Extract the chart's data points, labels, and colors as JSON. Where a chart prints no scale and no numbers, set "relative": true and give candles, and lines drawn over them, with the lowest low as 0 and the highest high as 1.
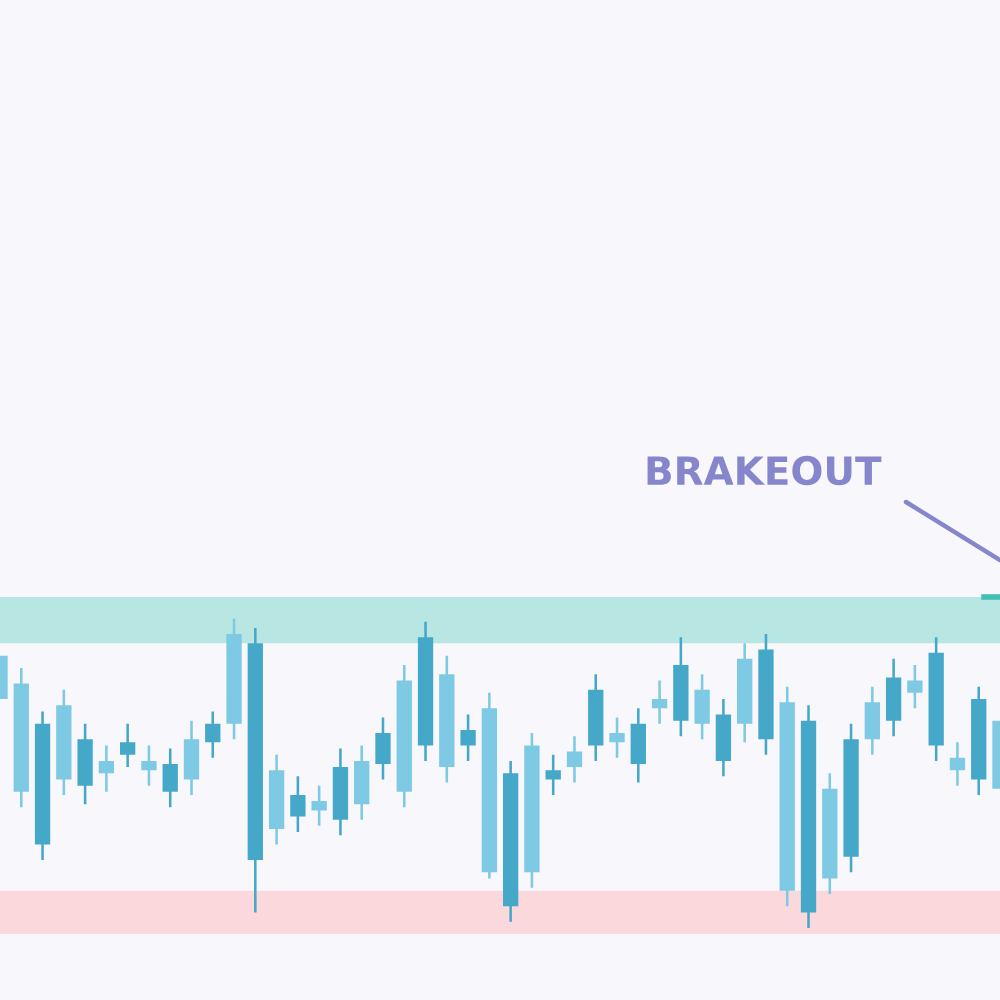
{
  "chart_data": {
    "type": "candlestick",
    "relative": true,
    "categories": [
      null,
      null,
      null,
      null,
      null,
      null,
      null,
      null,
      null,
      null,
      null,
      null,
      null,
      null,
      null,
      null,
      null,
      null,
      null,
      null,
      null,
      null,
      null,
      null,
      null,
      null,
      null,
      null,
      null,
      null,
      null,
      null,
      null,
      null,
      null,
      null,
      null,
      null,
      null,
      null,
      null,
      null,
      null,
      null,
      null,
      null,
      null,
      null
    ],
    "ohlc": [
      [
        0.74,
        0.88,
        0.74,
        0.88
      ],
      [
        0.44,
        0.84,
        0.39,
        0.79
      ],
      [
        0.66,
        0.7,
        0.22,
        0.27
      ],
      [
        0.48,
        0.77,
        0.43,
        0.72
      ],
      [
        0.61,
        0.66,
        0.4,
        0.46
      ],
      [
        0.5,
        0.59,
        0.44,
        0.54
      ],
      [
        0.6,
        0.66,
        0.52,
        0.56
      ],
      [
        0.51,
        0.59,
        0.46,
        0.54
      ],
      [
        0.53,
        0.58,
        0.39,
        0.44
      ],
      [
        0.48,
        0.67,
        0.43,
        0.61
      ],
      [
        0.66,
        0.7,
        0.55,
        0.6
      ],
      [
        0.66,
        1.0,
        0.61,
        0.95
      ],
      [
        0.92,
        0.97,
        0.05,
        0.22
      ],
      [
        0.32,
        0.56,
        0.27,
        0.51
      ],
      [
        0.43,
        0.49,
        0.31,
        0.36
      ],
      [
        0.38,
        0.46,
        0.33,
        0.41
      ],
      [
        0.52,
        0.58,
        0.3,
        0.35
      ],
      [
        0.4,
        0.59,
        0.35,
        0.54
      ],
      [
        0.63,
        0.68,
        0.48,
        0.53
      ],
      [
        0.44,
        0.85,
        0.39,
        0.8
      ],
      [
        0.94,
        0.99,
        0.54,
        0.59
      ],
      [
        0.52,
        0.88,
        0.47,
        0.82
      ],
      [
        0.64,
        0.69,
        0.54,
        0.59
      ],
      [
        0.18,
        0.76,
        0.16,
        0.71
      ],
      [
        0.5,
        0.54,
        0.02,
        0.07
      ],
      [
        0.18,
        0.63,
        0.13,
        0.59
      ],
      [
        0.51,
        0.56,
        0.43,
        0.48
      ],
      [
        0.52,
        0.62,
        0.47,
        0.57
      ],
      [
        0.77,
        0.82,
        0.54,
        0.59
      ],
      [
        0.6,
        0.68,
        0.55,
        0.63
      ],
      [
        0.66,
        0.71,
        0.47,
        0.53
      ],
      [
        0.71,
        0.8,
        0.66,
        0.74
      ],
      [
        0.85,
        0.94,
        0.62,
        0.67
      ],
      [
        0.66,
        0.82,
        0.61,
        0.77
      ],
      [
        0.69,
        0.74,
        0.49,
        0.54
      ],
      [
        0.66,
        0.92,
        0.6,
        0.87
      ],
      [
        0.9,
        0.95,
        0.56,
        0.61
      ],
      [
        0.12,
        0.78,
        0.07,
        0.73
      ],
      [
        0.67,
        0.72,
        0.0,
        0.05
      ],
      [
        0.16,
        0.5,
        0.11,
        0.45
      ],
      [
        0.61,
        0.66,
        0.18,
        0.23
      ],
      [
        0.61,
        0.78,
        0.56,
        0.73
      ],
      [
        0.81,
        0.87,
        0.62,
        0.67
      ],
      [
        0.76,
        0.85,
        0.71,
        0.8
      ],
      [
        0.89,
        0.94,
        0.54,
        0.59
      ],
      [
        0.51,
        0.6,
        0.46,
        0.55
      ],
      [
        0.74,
        0.78,
        0.43,
        0.48
      ],
      [
        0.45,
        0.67,
        0.45,
        0.67
      ]
    ],
    "colors": [
      "#7ec9e3",
      "#7ec9e3",
      "#46a8c8",
      "#7ec9e3",
      "#46a8c8",
      "#7ec9e3",
      "#46a8c8",
      "#7ec9e3",
      "#46a8c8",
      "#7ec9e3",
      "#46a8c8",
      "#7ec9e3",
      "#46a8c8",
      "#7ec9e3",
      "#46a8c8",
      "#7ec9e3",
      "#46a8c8",
      "#7ec9e3",
      "#46a8c8",
      "#7ec9e3",
      "#46a8c8",
      "#7ec9e3",
      "#46a8c8",
      "#7ec9e3",
      "#46a8c8",
      "#7ec9e3",
      "#46a8c8",
      "#7ec9e3",
      "#46a8c8",
      "#7ec9e3",
      "#46a8c8",
      "#7ec9e3",
      "#46a8c8",
      "#7ec9e3",
      "#46a8c8",
      "#7ec9e3",
      "#46a8c8",
      "#7ec9e3",
      "#46a8c8",
      "#7ec9e3",
      "#46a8c8",
      "#7ec9e3",
      "#46a8c8",
      "#7ec9e3",
      "#46a8c8",
      "#7ec9e3",
      "#46a8c8",
      "#7ec9e3"
    ],
    "bands": [
      {
        "axis": "y",
        "from": 0.92,
        "to": 1.07,
        "color": "#b8e6e3"
      },
      {
        "axis": "y",
        "from": -0.02,
        "to": 0.12,
        "color": "#fbd8dc"
      }
    ],
    "annotations": [
      "BRAKEOUT"
    ]
  }
}
